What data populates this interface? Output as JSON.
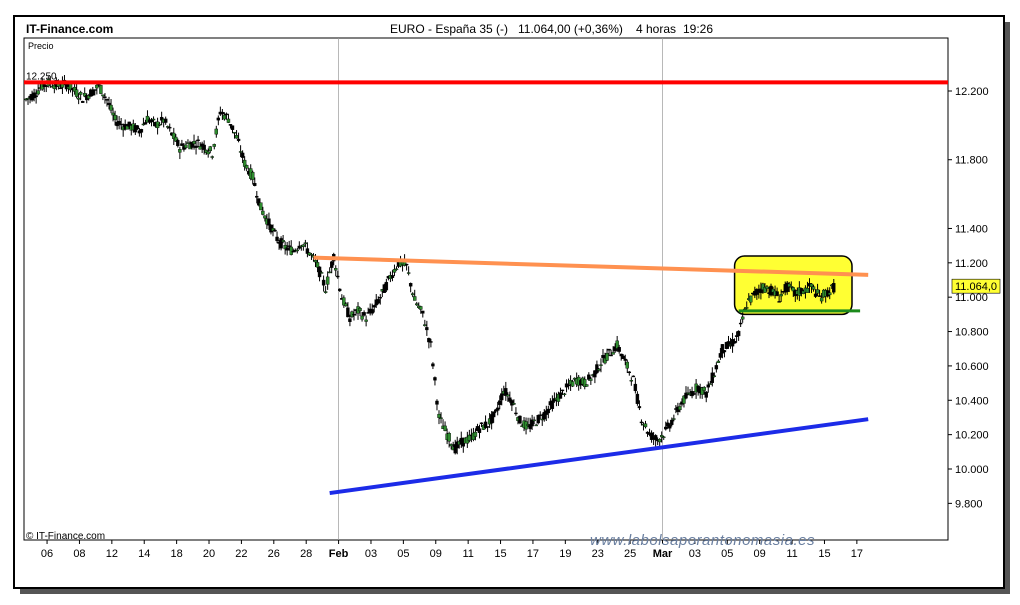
{
  "header": {
    "brand": "IT-Finance.com",
    "instrument": "EURO - España 35 (-)",
    "quote": "11.064,00 (+0,36%)",
    "timeframe": "4 horas",
    "time": "19:26"
  },
  "footer": {
    "copyright": "© IT-Finance.com",
    "watermark": "www.labolsaporantonomasia.es"
  },
  "chart_data": {
    "type": "candlestick",
    "title": "EURO - España 35 (-)",
    "ylabel": "Precio",
    "ylim": [
      9650,
      12420
    ],
    "yticks": [
      9800,
      10000,
      10200,
      10400,
      10600,
      10800,
      11000,
      11200,
      11400,
      11800,
      12200
    ],
    "ytick_labels": [
      "9.800",
      "10.000",
      "10.200",
      "10.400",
      "10.600",
      "10.800",
      "11.000",
      "11.200",
      "11.400",
      "11.800",
      "12.200"
    ],
    "xlim": [
      0,
      100
    ],
    "xticks": [
      {
        "x": 2.6,
        "label": "06",
        "major": false
      },
      {
        "x": 6.6,
        "label": "08",
        "major": false
      },
      {
        "x": 10.6,
        "label": "12",
        "major": false
      },
      {
        "x": 14.6,
        "label": "14",
        "major": false
      },
      {
        "x": 18.6,
        "label": "18",
        "major": false
      },
      {
        "x": 22.6,
        "label": "20",
        "major": false
      },
      {
        "x": 26.6,
        "label": "22",
        "major": false
      },
      {
        "x": 30.6,
        "label": "26",
        "major": false
      },
      {
        "x": 34.6,
        "label": "28",
        "major": false
      },
      {
        "x": 38.6,
        "label": "Feb",
        "major": true
      },
      {
        "x": 42.6,
        "label": "03",
        "major": false
      },
      {
        "x": 46.6,
        "label": "05",
        "major": false
      },
      {
        "x": 50.6,
        "label": "09",
        "major": false
      },
      {
        "x": 54.6,
        "label": "11",
        "major": false
      },
      {
        "x": 58.6,
        "label": "15",
        "major": false
      },
      {
        "x": 62.6,
        "label": "17",
        "major": false
      },
      {
        "x": 66.6,
        "label": "19",
        "major": false
      },
      {
        "x": 70.6,
        "label": "23",
        "major": false
      },
      {
        "x": 74.6,
        "label": "25",
        "major": false
      },
      {
        "x": 78.6,
        "label": "Mar",
        "major": true
      },
      {
        "x": 82.6,
        "label": "03",
        "major": false
      },
      {
        "x": 86.6,
        "label": "05",
        "major": false
      },
      {
        "x": 90.6,
        "label": "09",
        "major": false
      },
      {
        "x": 94.6,
        "label": "11",
        "major": false
      },
      {
        "x": 98.6,
        "label": "15",
        "major": false
      },
      {
        "x": 102.6,
        "label": "17",
        "major": false
      }
    ],
    "grid_x": [
      38.6,
      78.6
    ],
    "price_path": [
      [
        0,
        12150
      ],
      [
        1,
        12180
      ],
      [
        2,
        12230
      ],
      [
        3,
        12250
      ],
      [
        4,
        12230
      ],
      [
        5,
        12240
      ],
      [
        6,
        12200
      ],
      [
        7,
        12160
      ],
      [
        8,
        12190
      ],
      [
        9,
        12230
      ],
      [
        10,
        12150
      ],
      [
        11,
        12030
      ],
      [
        12,
        12000
      ],
      [
        13,
        11990
      ],
      [
        14,
        11970
      ],
      [
        15,
        12040
      ],
      [
        16,
        12000
      ],
      [
        17,
        12030
      ],
      [
        18,
        11950
      ],
      [
        19,
        11870
      ],
      [
        20,
        11890
      ],
      [
        21,
        11900
      ],
      [
        22,
        11880
      ],
      [
        23,
        11840
      ],
      [
        24,
        12080
      ],
      [
        25,
        12040
      ],
      [
        26,
        11930
      ],
      [
        27,
        11780
      ],
      [
        28,
        11700
      ],
      [
        29,
        11520
      ],
      [
        30,
        11430
      ],
      [
        31,
        11340
      ],
      [
        32,
        11290
      ],
      [
        33,
        11270
      ],
      [
        34,
        11320
      ],
      [
        35,
        11260
      ],
      [
        36,
        11180
      ],
      [
        37,
        11050
      ],
      [
        38,
        11240
      ],
      [
        39,
        11000
      ],
      [
        40,
        10880
      ],
      [
        41,
        10920
      ],
      [
        42,
        10880
      ],
      [
        43,
        10940
      ],
      [
        44,
        11020
      ],
      [
        45,
        11120
      ],
      [
        46,
        11200
      ],
      [
        47,
        11180
      ],
      [
        48,
        10980
      ],
      [
        49,
        10900
      ],
      [
        50,
        10720
      ],
      [
        51,
        10300
      ],
      [
        52,
        10200
      ],
      [
        53,
        10120
      ],
      [
        54,
        10160
      ],
      [
        55,
        10180
      ],
      [
        56,
        10240
      ],
      [
        57,
        10260
      ],
      [
        58,
        10320
      ],
      [
        59,
        10460
      ],
      [
        60,
        10400
      ],
      [
        61,
        10280
      ],
      [
        62,
        10240
      ],
      [
        63,
        10280
      ],
      [
        64,
        10320
      ],
      [
        65,
        10380
      ],
      [
        66,
        10430
      ],
      [
        67,
        10480
      ],
      [
        68,
        10520
      ],
      [
        69,
        10500
      ],
      [
        70,
        10540
      ],
      [
        71,
        10620
      ],
      [
        72,
        10670
      ],
      [
        73,
        10720
      ],
      [
        74,
        10620
      ],
      [
        75,
        10520
      ],
      [
        76,
        10300
      ],
      [
        77,
        10200
      ],
      [
        78,
        10170
      ],
      [
        79,
        10220
      ],
      [
        80,
        10300
      ],
      [
        81,
        10390
      ],
      [
        82,
        10440
      ],
      [
        83,
        10480
      ],
      [
        84,
        10440
      ],
      [
        85,
        10560
      ],
      [
        86,
        10700
      ],
      [
        87,
        10720
      ],
      [
        88,
        10780
      ],
      [
        89,
        10960
      ],
      [
        90,
        11020
      ],
      [
        91,
        11060
      ],
      [
        92,
        11040
      ],
      [
        93,
        11000
      ],
      [
        94,
        11060
      ],
      [
        95,
        11020
      ],
      [
        96,
        11040
      ],
      [
        97,
        11060
      ],
      [
        98,
        11000
      ],
      [
        99,
        11030
      ],
      [
        100,
        11064
      ]
    ],
    "current_price_label": "11.064,0",
    "current_price": 11064,
    "annotations": [
      {
        "type": "hline",
        "name": "resistance-12250",
        "y": 12250,
        "label": "12.250",
        "color": "#ff0000"
      },
      {
        "type": "trendline",
        "name": "resistance-trendline",
        "x1": 35.5,
        "y1": 11230,
        "x2": 104,
        "y2": 11130,
        "color": "#ff9150"
      },
      {
        "type": "trendline",
        "name": "support-trendline",
        "x1": 37.5,
        "y1": 9860,
        "x2": 104,
        "y2": 10290,
        "color": "#1c2be8"
      },
      {
        "type": "range-box",
        "name": "consolidation-box",
        "x1": 87.5,
        "x2": 102,
        "y1": 10900,
        "y2": 11240,
        "color": "#ffff33"
      },
      {
        "type": "hline-segment",
        "name": "range-support",
        "x1": 88,
        "x2": 103,
        "y": 10920,
        "color": "#1c8a1c"
      }
    ],
    "colors": {
      "plot_bg": "#ffffff",
      "price": "#000000",
      "up": "#2e8b2e",
      "grid": "#9a9a9a",
      "price_tag_bg": "#ffff33"
    }
  }
}
